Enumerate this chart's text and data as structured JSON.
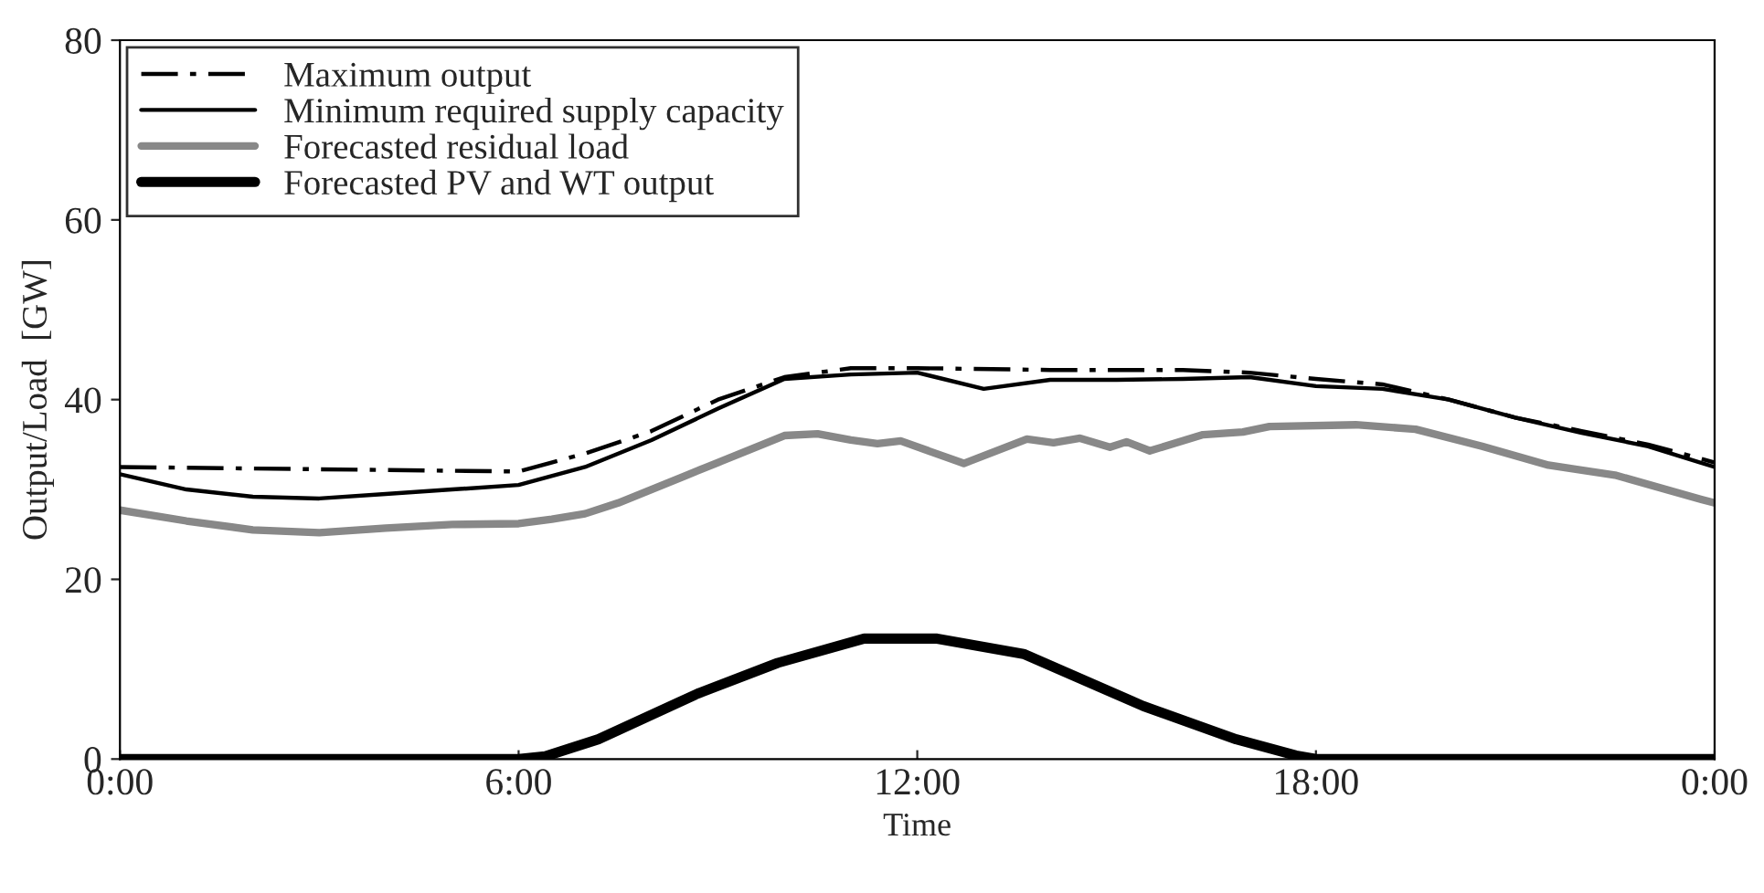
{
  "chart_data": {
    "type": "line",
    "xlabel": "Time",
    "ylabel": "Output/Load  [GW]",
    "xlim": [
      0,
      24
    ],
    "xticks": [
      {
        "value": 0,
        "label": "0:00"
      },
      {
        "value": 6,
        "label": "6:00"
      },
      {
        "value": 12,
        "label": "12:00"
      },
      {
        "value": 18,
        "label": "18:00"
      },
      {
        "value": 24,
        "label": "0:00"
      }
    ],
    "ylim": [
      0,
      80
    ],
    "yticks": [
      0,
      20,
      40,
      60,
      80
    ],
    "grid": false,
    "legend": "top left",
    "series": [
      {
        "name": "Maximum output",
        "color": "#000000",
        "line_style": "dashdot",
        "x": [
          0,
          6,
          7,
          8,
          9,
          10,
          11,
          12,
          14,
          16,
          17,
          18,
          19,
          20,
          21,
          22,
          23,
          24
        ],
        "values": [
          32.5,
          32,
          34,
          36.5,
          40,
          42.5,
          43.5,
          43.5,
          43.3,
          43.3,
          43,
          42.3,
          41.7,
          40,
          38,
          36.5,
          35,
          33
        ]
      },
      {
        "name": "Minimum required supply capacity",
        "color": "#000000",
        "line_style": "solid",
        "x": [
          0,
          1,
          2,
          3,
          4,
          5,
          6,
          7,
          8,
          9,
          10,
          11,
          12,
          13,
          14,
          15,
          16,
          17,
          18,
          19,
          20,
          21,
          22,
          23,
          24
        ],
        "values": [
          31.7,
          30,
          29.2,
          29,
          29.5,
          30,
          30.5,
          32.5,
          35.5,
          39,
          42.3,
          42.8,
          43,
          41.2,
          42.2,
          42.2,
          42.3,
          42.5,
          41.5,
          41.2,
          40,
          38,
          36.3,
          34.8,
          32.5
        ]
      },
      {
        "name": "Forecasted residual load",
        "color": "#888888",
        "line_style": "solid",
        "x": [
          0,
          1,
          2,
          3,
          4,
          5,
          6,
          6.5,
          7,
          7.5,
          8,
          8.5,
          9,
          9.5,
          10,
          10.5,
          11,
          11.4,
          11.75,
          12.7,
          13.65,
          14.05,
          14.45,
          14.9,
          15.15,
          15.5,
          16.3,
          16.9,
          17.3,
          18.6,
          19.5,
          20.5,
          21.5,
          22.5,
          23.8,
          24
        ],
        "values": [
          27.7,
          26.5,
          25.5,
          25.2,
          25.7,
          26.1,
          26.2,
          26.7,
          27.3,
          28.5,
          30,
          31.5,
          33,
          34.5,
          36,
          36.2,
          35.5,
          35.1,
          35.4,
          32.9,
          35.6,
          35.2,
          35.7,
          34.7,
          35.3,
          34.3,
          36.1,
          36.4,
          37,
          37.2,
          36.7,
          34.8,
          32.7,
          31.6,
          28.9,
          28.5
        ]
      },
      {
        "name": "Forecasted PV and WT output",
        "color": "#000000",
        "line_style": "solid",
        "x": [
          0,
          6,
          6.4,
          7.2,
          8.7,
          9.9,
          11.2,
          12.3,
          13.6,
          15.4,
          16.8,
          17.7,
          18,
          24
        ],
        "values": [
          0,
          0,
          0.3,
          2.2,
          7.3,
          10.7,
          13.4,
          13.4,
          11.7,
          5.9,
          2.2,
          0.4,
          0,
          0
        ]
      }
    ]
  }
}
